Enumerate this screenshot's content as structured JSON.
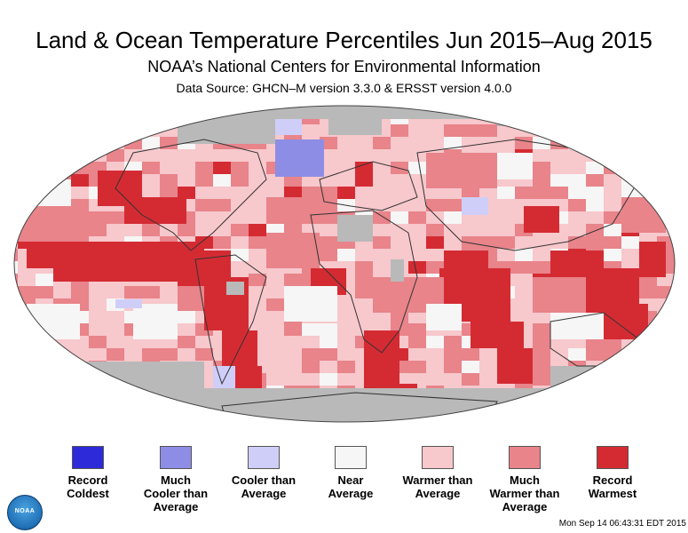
{
  "header": {
    "title": "Land & Ocean Temperature Percentiles Jun 2015–Aug 2015",
    "subtitle": "NOAA’s National Centers for Environmental Information",
    "source": "Data Source: GHCN–M version 3.3.0 & ERSST version 4.0.0"
  },
  "map": {
    "colors": {
      "record_coldest": "#2d2ad9",
      "much_cooler": "#8e8de6",
      "cooler": "#cfcef8",
      "near_average": "#f6f6f6",
      "warmer": "#f7c8cc",
      "much_warmer": "#e8848a",
      "record_warmest": "#d42b33",
      "no_data": "#b9b9b9",
      "land_outline": "#333333"
    }
  },
  "legend": {
    "items": [
      {
        "label": "Record\nColdest",
        "color": "#2d2ad9"
      },
      {
        "label": "Much\nCooler than\nAverage",
        "color": "#8e8de6"
      },
      {
        "label": "Cooler than\nAverage",
        "color": "#cfcef8"
      },
      {
        "label": "Near\nAverage",
        "color": "#f6f6f6"
      },
      {
        "label": "Warmer than\nAverage",
        "color": "#f7c8cc"
      },
      {
        "label": "Much\nWarmer than\nAverage",
        "color": "#e8848a"
      },
      {
        "label": "Record\nWarmest",
        "color": "#d42b33"
      }
    ]
  },
  "logo": {
    "text": "NOAA"
  },
  "footer": {
    "timestamp": "Mon Sep 14 06:43:31 EDT 2015"
  }
}
